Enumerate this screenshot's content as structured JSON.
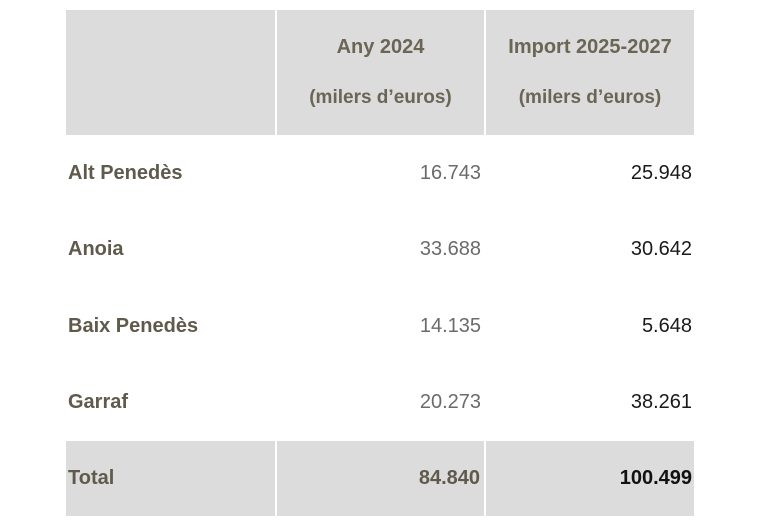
{
  "table": {
    "headers": [
      {
        "main": "",
        "sub": ""
      },
      {
        "main": "Any 2024",
        "sub": "(milers d’euros)"
      },
      {
        "main": "Import 2025-2027",
        "sub": "(milers d’euros)"
      }
    ],
    "rows": [
      {
        "region": "Alt Penedès",
        "year_2024": "16.743",
        "import_2025_2027": "25.948"
      },
      {
        "region": "Anoia",
        "year_2024": "33.688",
        "import_2025_2027": "30.642"
      },
      {
        "region": "Baix Penedès",
        "year_2024": "14.135",
        "import_2025_2027": "5.648"
      },
      {
        "region": "Garraf",
        "year_2024": "20.273",
        "import_2025_2027": "38.261"
      }
    ],
    "total": {
      "label": "Total",
      "year_2024": "84.840",
      "import_2025_2027": "100.499"
    }
  },
  "colors": {
    "header_bg": "#dcdcdc",
    "label_text": "#5f5a4c",
    "value_text": "#1a1a1a"
  }
}
